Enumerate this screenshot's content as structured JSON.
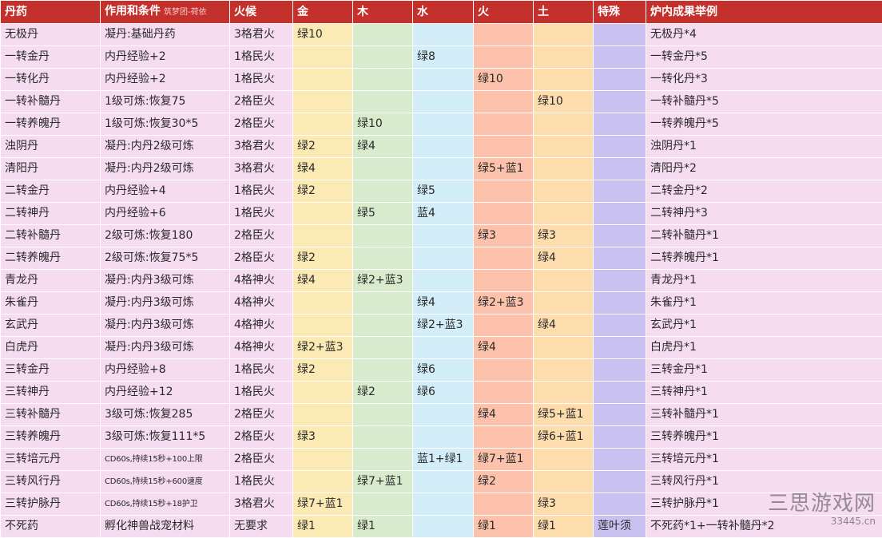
{
  "table": {
    "headers": {
      "name": "丹药",
      "effect": "作用和条件",
      "effect_note": "筑梦团-荷依",
      "fire": "火候",
      "gold": "金",
      "wood": "木",
      "water": "水",
      "huo": "火",
      "earth": "土",
      "special": "特殊",
      "result": "炉内成果举例"
    },
    "rows": [
      {
        "name": "无极丹",
        "effect": "凝丹:基础丹药",
        "fire": "3格君火",
        "gold": "绿10",
        "wood": "",
        "water": "",
        "huo": "",
        "earth": "",
        "special": "",
        "result": "无极丹*4"
      },
      {
        "name": "一转金丹",
        "effect": "内丹经验+2",
        "fire": "1格民火",
        "gold": "",
        "wood": "",
        "water": "绿8",
        "huo": "",
        "earth": "",
        "special": "",
        "result": "一转金丹*5"
      },
      {
        "name": "一转化丹",
        "effect": "内丹经验+2",
        "fire": "1格民火",
        "gold": "",
        "wood": "",
        "water": "",
        "huo": "绿10",
        "earth": "",
        "special": "",
        "result": "一转化丹*3"
      },
      {
        "name": "一转补髓丹",
        "effect": "1级可炼:恢复75",
        "fire": "2格臣火",
        "gold": "",
        "wood": "",
        "water": "",
        "huo": "",
        "earth": "绿10",
        "special": "",
        "result": "一转补髓丹*5"
      },
      {
        "name": "一转养魄丹",
        "effect": "1级可炼:恢复30*5",
        "fire": "2格臣火",
        "gold": "",
        "wood": "绿10",
        "water": "",
        "huo": "",
        "earth": "",
        "special": "",
        "result": "一转养魄丹*5"
      },
      {
        "name": "浊阴丹",
        "effect": "凝丹:内丹2级可炼",
        "fire": "3格君火",
        "gold": "绿2",
        "wood": "绿4",
        "water": "",
        "huo": "",
        "earth": "",
        "special": "",
        "result": "浊阴丹*1"
      },
      {
        "name": "清阳丹",
        "effect": "凝丹:内丹2级可炼",
        "fire": "3格君火",
        "gold": "绿4",
        "wood": "",
        "water": "",
        "huo": "绿5+蓝1",
        "earth": "",
        "special": "",
        "result": "清阳丹*2"
      },
      {
        "name": "二转金丹",
        "effect": "内丹经验+4",
        "fire": "1格民火",
        "gold": "绿2",
        "wood": "",
        "water": "绿5",
        "huo": "",
        "earth": "",
        "special": "",
        "result": "二转金丹*2"
      },
      {
        "name": "二转神丹",
        "effect": "内丹经验+6",
        "fire": "1格民火",
        "gold": "",
        "wood": "绿5",
        "water": "蓝4",
        "huo": "",
        "earth": "",
        "special": "",
        "result": "二转神丹*3"
      },
      {
        "name": "二转补髓丹",
        "effect": "2级可炼:恢复180",
        "fire": "2格臣火",
        "gold": "",
        "wood": "",
        "water": "",
        "huo": "绿3",
        "earth": "绿3",
        "special": "",
        "result": "二转补髓丹*1"
      },
      {
        "name": "二转养魄丹",
        "effect": "2级可炼:恢复75*5",
        "fire": "2格臣火",
        "gold": "绿2",
        "wood": "",
        "water": "",
        "huo": "",
        "earth": "绿4",
        "special": "",
        "result": "二转养魄丹*1"
      },
      {
        "name": "青龙丹",
        "effect": "凝丹:内丹3级可炼",
        "fire": "4格神火",
        "gold": "绿4",
        "wood": "绿2+蓝3",
        "water": "",
        "huo": "",
        "earth": "",
        "special": "",
        "result": "青龙丹*1"
      },
      {
        "name": "朱雀丹",
        "effect": "凝丹:内丹3级可炼",
        "fire": "4格神火",
        "gold": "",
        "wood": "",
        "water": "绿4",
        "huo": "绿2+蓝3",
        "earth": "",
        "special": "",
        "result": "朱雀丹*1"
      },
      {
        "name": "玄武丹",
        "effect": "凝丹:内丹3级可炼",
        "fire": "4格神火",
        "gold": "",
        "wood": "",
        "water": "绿2+蓝3",
        "huo": "",
        "earth": "绿4",
        "special": "",
        "result": "玄武丹*1"
      },
      {
        "name": "白虎丹",
        "effect": "凝丹:内丹3级可炼",
        "fire": "4格神火",
        "gold": "绿2+蓝3",
        "wood": "",
        "water": "",
        "huo": "绿4",
        "earth": "",
        "special": "",
        "result": "白虎丹*1"
      },
      {
        "name": "三转金丹",
        "effect": "内丹经验+8",
        "fire": "1格民火",
        "gold": "绿2",
        "wood": "",
        "water": "绿6",
        "huo": "",
        "earth": "",
        "special": "",
        "result": "三转金丹*1"
      },
      {
        "name": "三转神丹",
        "effect": "内丹经验+12",
        "fire": "1格民火",
        "gold": "",
        "wood": "绿2",
        "water": "绿6",
        "huo": "",
        "earth": "",
        "special": "",
        "result": "三转神丹*1"
      },
      {
        "name": "三转补髓丹",
        "effect": "3级可炼:恢复285",
        "fire": "2格臣火",
        "gold": "",
        "wood": "",
        "water": "",
        "huo": "绿4",
        "earth": "绿5+蓝1",
        "special": "",
        "result": "三转补髓丹*1"
      },
      {
        "name": "三转养魄丹",
        "effect": "3级可炼:恢复111*5",
        "fire": "2格臣火",
        "gold": "绿3",
        "wood": "",
        "water": "",
        "huo": "",
        "earth": "绿6+蓝1",
        "special": "",
        "result": "三转养魄丹*1"
      },
      {
        "name": "三转培元丹",
        "effect": "CD60s,持续15秒+100上限",
        "fire": "2格臣火",
        "gold": "",
        "wood": "",
        "water": "蓝1+绿1",
        "huo": "绿7+蓝1",
        "earth": "",
        "special": "",
        "result": "三转培元丹*1",
        "effect_small": true
      },
      {
        "name": "三转风行丹",
        "effect": "CD60s,持续15秒+600速度",
        "fire": "1格民火",
        "gold": "",
        "wood": "绿7+蓝1",
        "water": "",
        "huo": "绿2",
        "earth": "",
        "special": "",
        "result": "三转风行丹*1",
        "effect_small": true
      },
      {
        "name": "三转护脉丹",
        "effect": "CD60s,持续15秒+18护卫",
        "fire": "3格君火",
        "gold": "绿7+蓝1",
        "wood": "",
        "water": "",
        "huo": "",
        "earth": "绿3",
        "special": "",
        "result": "三转护脉丹*1",
        "effect_small": true
      },
      {
        "name": "不死药",
        "effect": "孵化神兽战宠材料",
        "fire": "无要求",
        "gold": "绿1",
        "wood": "绿1",
        "water": "",
        "huo": "绿1",
        "earth": "绿1",
        "special": "莲叶须",
        "result": "不死药*1+一转补髓丹*2"
      }
    ]
  },
  "watermark": {
    "name": "三思游戏网",
    "url": "33445.cn"
  }
}
